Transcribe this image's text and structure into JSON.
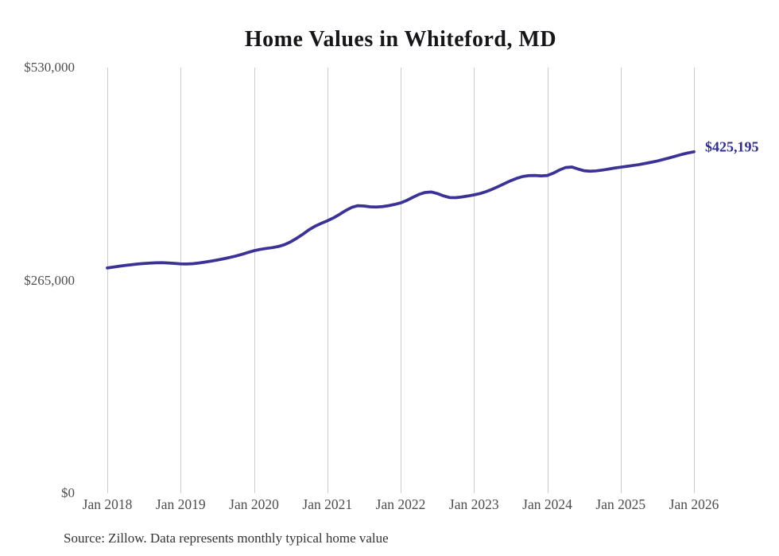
{
  "title": "Home Values in Whiteford, MD",
  "source_note": "Source: Zillow. Data represents monthly typical home value",
  "colors": {
    "line": "#3b3298",
    "end_label": "#2e2c96",
    "gridline": "#cccccc",
    "axis_text": "#4d4d4d",
    "title_text": "#16151a"
  },
  "chart_data": {
    "type": "line",
    "title": "Home Values in Whiteford, MD",
    "xlabel": "",
    "ylabel": "",
    "ylim": [
      0,
      530000
    ],
    "grid": "vertical-only",
    "legend": "none",
    "y_ticks": [
      {
        "label": "$530,000",
        "value": 530000
      },
      {
        "label": "$265,000",
        "value": 265000
      },
      {
        "label": "$0",
        "value": 0
      }
    ],
    "x_ticks": [
      "Jan 2018",
      "Jan 2019",
      "Jan 2020",
      "Jan 2021",
      "Jan 2022",
      "Jan 2023",
      "Jan 2024",
      "Jan 2025",
      "Jan 2026"
    ],
    "end_value": 425195,
    "end_value_label": "$425,195",
    "series": [
      {
        "name": "Monthly typical home value",
        "months": [
          "2018-01",
          "2018-02",
          "2018-03",
          "2018-04",
          "2018-05",
          "2018-06",
          "2018-07",
          "2018-08",
          "2018-09",
          "2018-10",
          "2018-11",
          "2018-12",
          "2019-01",
          "2019-02",
          "2019-03",
          "2019-04",
          "2019-05",
          "2019-06",
          "2019-07",
          "2019-08",
          "2019-09",
          "2019-10",
          "2019-11",
          "2019-12",
          "2020-01",
          "2020-02",
          "2020-03",
          "2020-04",
          "2020-05",
          "2020-06",
          "2020-07",
          "2020-08",
          "2020-09",
          "2020-10",
          "2020-11",
          "2020-12",
          "2021-01",
          "2021-02",
          "2021-03",
          "2021-04",
          "2021-05",
          "2021-06",
          "2021-07",
          "2021-08",
          "2021-09",
          "2021-10",
          "2021-11",
          "2021-12",
          "2022-01",
          "2022-02",
          "2022-03",
          "2022-04",
          "2022-05",
          "2022-06",
          "2022-07",
          "2022-08",
          "2022-09",
          "2022-10",
          "2022-11",
          "2022-12",
          "2023-01",
          "2023-02",
          "2023-03",
          "2023-04",
          "2023-05",
          "2023-06",
          "2023-07",
          "2023-08",
          "2023-09",
          "2023-10",
          "2023-11",
          "2023-12",
          "2024-01",
          "2024-02",
          "2024-03",
          "2024-04",
          "2024-05",
          "2024-06",
          "2024-07",
          "2024-08",
          "2024-09",
          "2024-10",
          "2024-11",
          "2024-12",
          "2025-01",
          "2025-02",
          "2025-03",
          "2025-04",
          "2025-05",
          "2025-06",
          "2025-07",
          "2025-08",
          "2025-09",
          "2025-10",
          "2025-11",
          "2025-12",
          "2026-01"
        ],
        "values": [
          280500,
          281600,
          282700,
          283700,
          284600,
          285400,
          286100,
          286600,
          286900,
          287000,
          286700,
          286200,
          285600,
          285400,
          285800,
          286700,
          287800,
          289000,
          290400,
          291900,
          293500,
          295300,
          297400,
          299700,
          302000,
          303600,
          304800,
          305800,
          307200,
          309500,
          313000,
          317500,
          322500,
          328000,
          332500,
          336000,
          339200,
          342800,
          347200,
          352000,
          355900,
          358000,
          357600,
          356600,
          356400,
          356900,
          358000,
          359600,
          361500,
          364600,
          368500,
          372100,
          374500,
          375100,
          373200,
          370300,
          368200,
          368000,
          368900,
          370100,
          371500,
          373200,
          375600,
          378600,
          382000,
          385600,
          389100,
          392100,
          394400,
          395500,
          395600,
          395200,
          395600,
          398600,
          402500,
          405600,
          406200,
          403800,
          401600,
          401000,
          401400,
          402400,
          403600,
          404900,
          406000,
          407000,
          408100,
          409200,
          410600,
          412100,
          413700,
          415600,
          417600,
          419700,
          421900,
          423700,
          425195
        ]
      }
    ]
  }
}
